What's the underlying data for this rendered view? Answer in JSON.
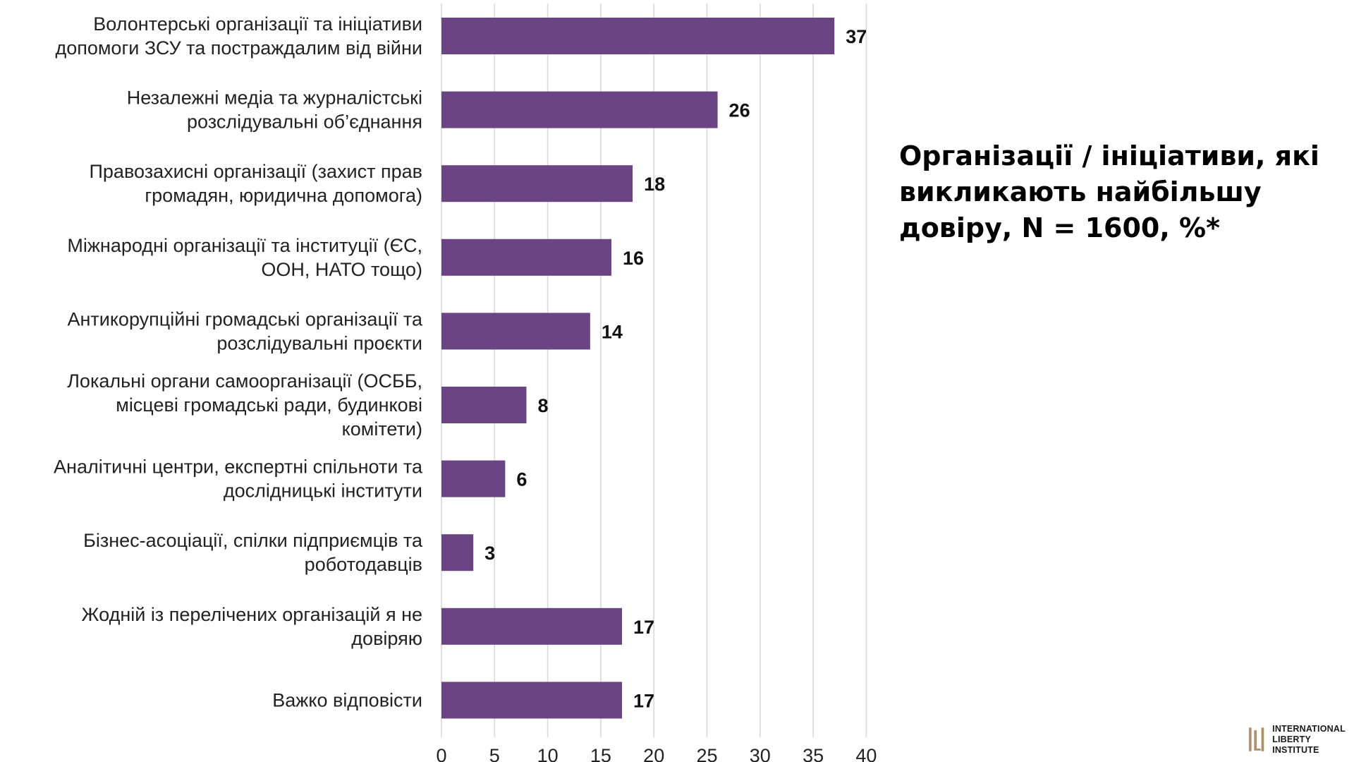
{
  "title_lines": [
    "Організації / ініціативи, які",
    "викликають найбільшу",
    "довіру, N = 1600, %*"
  ],
  "logo": {
    "line1": "INTERNATIONAL",
    "line2": "LIBERTY INSTITUTE",
    "accent_color": "#b0906a"
  },
  "chart_data": {
    "type": "bar",
    "orientation": "horizontal",
    "title": "Організації / ініціативи, які викликають найбільшу довіру, N = 1600, %*",
    "bar_color": "#6b4583",
    "gridlines": true,
    "xlim": [
      0,
      40
    ],
    "xticks": [
      0,
      5,
      10,
      15,
      20,
      25,
      30,
      35,
      40
    ],
    "categories": [
      [
        "Волонтерські організації та ініціативи",
        "допомоги ЗСУ та постраждалим від війни"
      ],
      [
        "Незалежні медіа та журналістські",
        "розслідувальні об’єднання"
      ],
      [
        "Правозахисні організації (захист прав",
        "громадян, юридична допомога)"
      ],
      [
        "Міжнародні організації та інституції (ЄС,",
        "ООН, НАТО тощо)"
      ],
      [
        "Антикорупційні громадські організації та",
        "розслідувальні проєкти"
      ],
      [
        "Локальні органи самоорганізації (ОСББ,",
        "місцеві громадські ради, будинкові",
        "комітети)"
      ],
      [
        "Аналітичні центри, експертні спільноти та",
        "дослідницькі інститути"
      ],
      [
        "Бізнес-асоціації, спілки підприємців та",
        "роботодавців"
      ],
      [
        "Жодній із перелічених організацій я не",
        "довіряю"
      ],
      [
        "Важко відповісти"
      ]
    ],
    "values": [
      37,
      26,
      18,
      16,
      14,
      8,
      6,
      3,
      17,
      17
    ]
  }
}
